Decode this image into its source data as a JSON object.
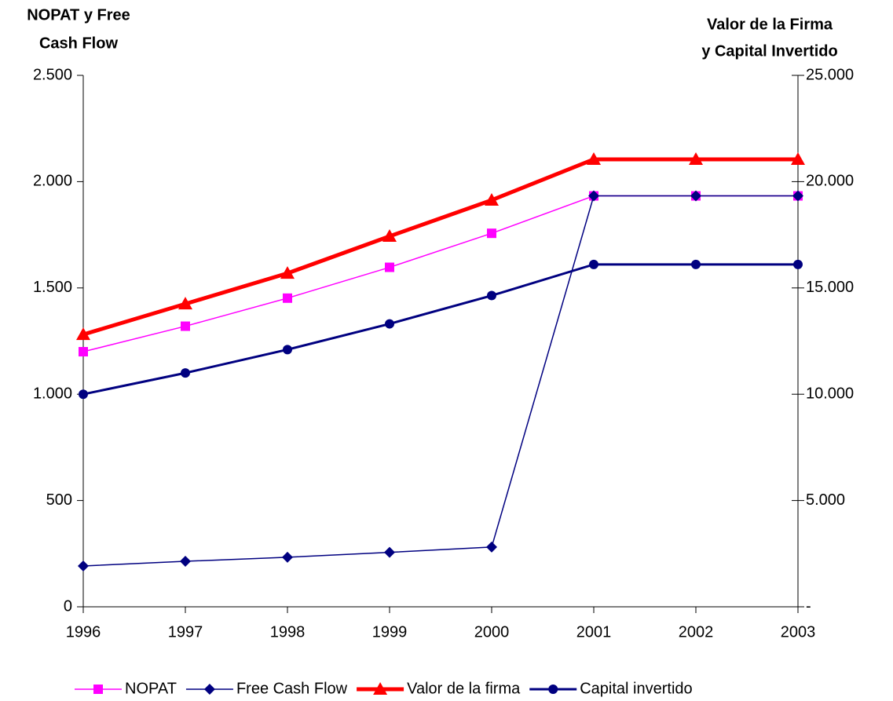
{
  "chart_data": {
    "type": "line",
    "y_label": [
      "NOPAT y Free",
      "Cash Flow"
    ],
    "y2_label": [
      "Valor de la  Firma",
      "y Capital Invertido"
    ],
    "categories": [
      "1996",
      "1997",
      "1998",
      "1999",
      "2000",
      "2001",
      "2002",
      "2003"
    ],
    "series": [
      {
        "name": "NOPAT",
        "color": "#ff00ff",
        "marker": "square",
        "width": 1.5,
        "values": [
          1200,
          1320,
          1452,
          1597,
          1757,
          1933,
          1933,
          1933
        ]
      },
      {
        "name": "Free Cash Flow",
        "color": "#000080",
        "marker": "diamond",
        "width": 1.5,
        "values": [
          192,
          214,
          233,
          256,
          281,
          1933,
          1933,
          1933
        ]
      },
      {
        "name": "Valor de la firma",
        "color": "#ff0000",
        "marker": "triangle",
        "width": 5,
        "axis": "y2",
        "values": [
          12810,
          14250,
          15690,
          17430,
          19130,
          21050,
          21050,
          21050
        ]
      },
      {
        "name": "Capital invertido",
        "color": "#000080",
        "marker": "circle",
        "width": 3,
        "axis": "y2",
        "values": [
          10000,
          11000,
          12100,
          13310,
          14641,
          16105,
          16105,
          16105
        ]
      }
    ],
    "ylim": [
      0,
      2500
    ],
    "yticks": [
      0,
      500,
      {
        "value": 1000,
        "label": "1.000"
      },
      {
        "value": 1500,
        "label": "1.500"
      },
      {
        "value": 2000,
        "label": "2.000"
      },
      {
        "value": 2500,
        "label": "2.500"
      }
    ],
    "y2lim": [
      0,
      25000
    ],
    "y2ticks": [
      {
        "value": 0,
        "label": "-"
      },
      {
        "value": 5000,
        "label": "5.000"
      },
      {
        "value": 10000,
        "label": "10.000"
      },
      {
        "value": 15000,
        "label": "15.000"
      },
      {
        "value": 20000,
        "label": "20.000"
      },
      {
        "value": 25000,
        "label": "25.000"
      }
    ],
    "grid": false,
    "legend": "bottom"
  }
}
